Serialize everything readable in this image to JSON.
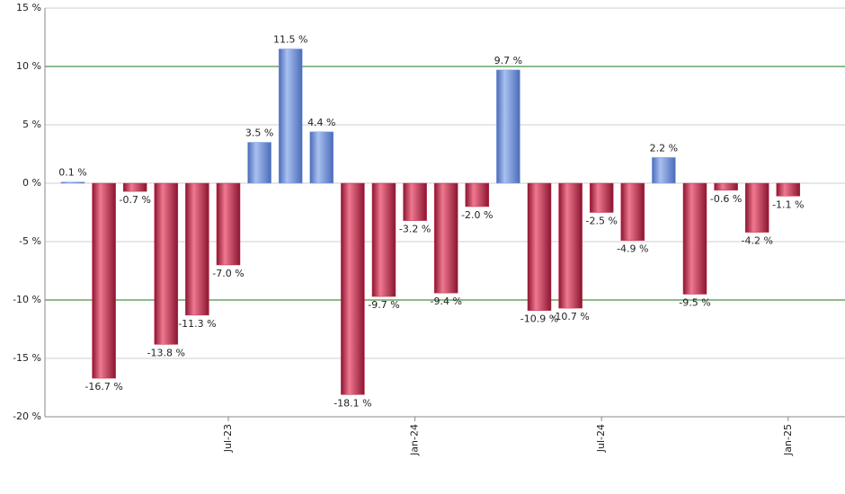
{
  "chart_data": {
    "type": "bar",
    "categories": [
      null,
      null,
      null,
      null,
      null,
      "Jul-23",
      null,
      null,
      null,
      null,
      null,
      "Jan-24",
      null,
      null,
      null,
      null,
      null,
      "Jul-24",
      null,
      null,
      null,
      null,
      null,
      "Jan-25"
    ],
    "values": [
      0.1,
      -16.7,
      -0.7,
      -13.8,
      -11.3,
      -7.0,
      3.5,
      11.5,
      4.4,
      -18.1,
      -9.7,
      -3.2,
      -9.4,
      -2.0,
      9.7,
      -10.9,
      -10.7,
      -2.5,
      -4.9,
      2.2,
      -9.5,
      -0.6,
      -4.2,
      -1.1
    ],
    "value_labels": [
      "0.1 %",
      "-16.7 %",
      "-0.7 %",
      "-13.8 %",
      "-11.3 %",
      "-7.0 %",
      "3.5 %",
      "11.5 %",
      "4.4 %",
      "-18.1 %",
      "-9.7 %",
      "-3.2 %",
      "-9.4 %",
      "-2.0 %",
      "9.7 %",
      "-10.9 %",
      "-10.7 %",
      "-2.5 %",
      "-4.9 %",
      "2.2 %",
      "-9.5 %",
      "-0.6 %",
      "-4.2 %",
      "-1.1 %"
    ],
    "positive_color": "#7a9ae0",
    "negative_color": "#c8284a",
    "ylim": [
      -20,
      15
    ],
    "yticks": [
      {
        "value": -20,
        "label": "-20 %"
      },
      {
        "value": -15,
        "label": "-15 %"
      },
      {
        "value": -10,
        "label": "-10 %"
      },
      {
        "value": -5,
        "label": "-5 %"
      },
      {
        "value": 0,
        "label": "0 %"
      },
      {
        "value": 5,
        "label": "5 %"
      },
      {
        "value": 10,
        "label": "10 %"
      },
      {
        "value": 15,
        "label": "15 %"
      }
    ],
    "grid": true,
    "reference_lines": [
      10,
      -10
    ],
    "reference_color": "#1a7a1a"
  }
}
